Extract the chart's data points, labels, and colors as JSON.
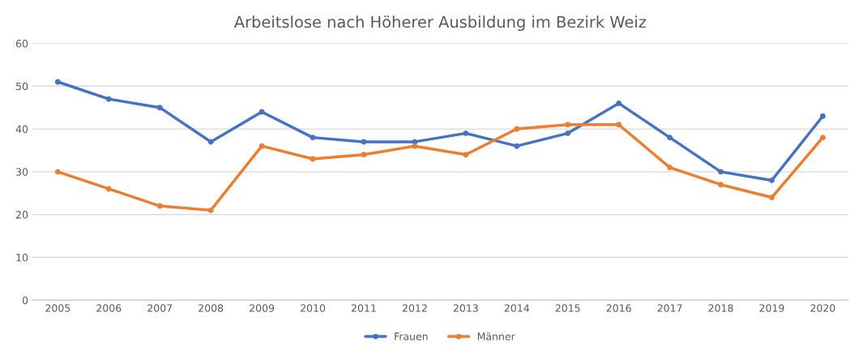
{
  "chart_data": {
    "type": "line",
    "title": "Arbeitslose nach Höherer Ausbildung im Bezirk Weiz",
    "categories": [
      "2005",
      "2006",
      "2007",
      "2008",
      "2009",
      "2010",
      "2011",
      "2012",
      "2013",
      "2014",
      "2015",
      "2016",
      "2017",
      "2018",
      "2019",
      "2020"
    ],
    "series": [
      {
        "name": "Frauen",
        "color": "#4472c4",
        "values": [
          51,
          47,
          45,
          37,
          44,
          38,
          37,
          37,
          39,
          36,
          39,
          46,
          38,
          30,
          28,
          43
        ]
      },
      {
        "name": "Männer",
        "color": "#ed7d31",
        "values": [
          30,
          26,
          22,
          21,
          36,
          33,
          34,
          36,
          34,
          40,
          41,
          41,
          31,
          27,
          24,
          38
        ]
      }
    ],
    "ylim": [
      0,
      60
    ],
    "yticks": [
      0,
      10,
      20,
      30,
      40,
      50,
      60
    ],
    "grid": "y",
    "legend": "bottom",
    "marker": "circle",
    "line_style": "solid"
  }
}
